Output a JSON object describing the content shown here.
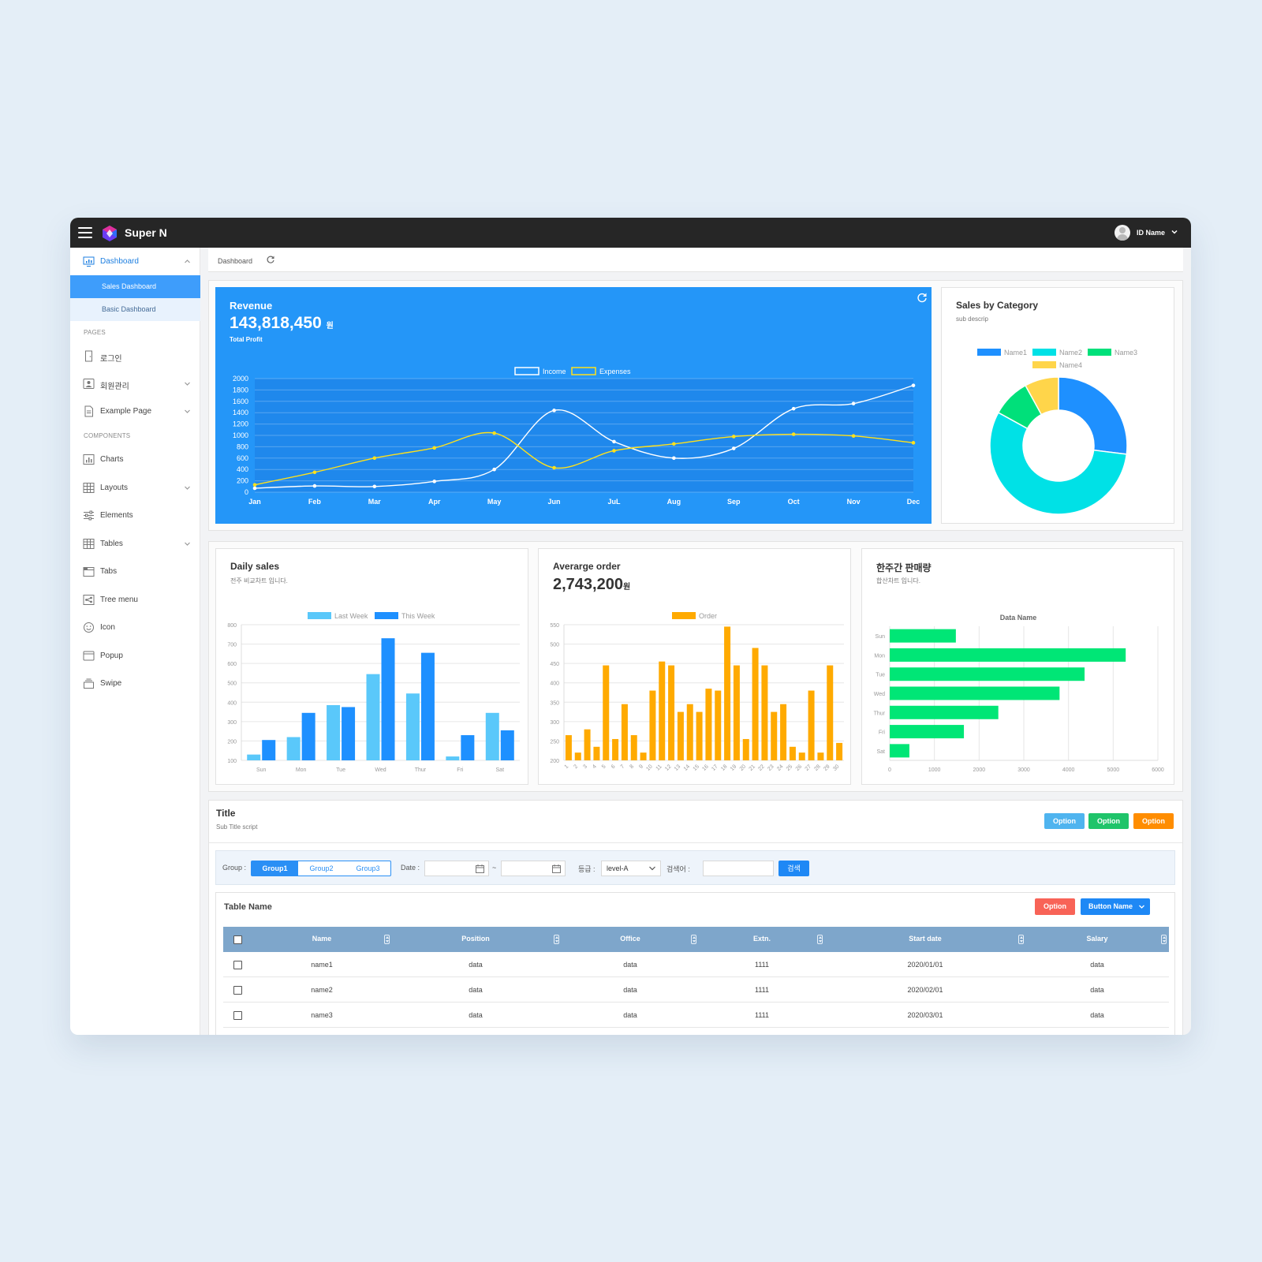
{
  "app": {
    "title": "Super N",
    "user_name": "ID Name"
  },
  "colors": {
    "topbar": "#262626",
    "accent": "#2496f8",
    "income_line": "#ffffff",
    "expenses_line": "#ffe11a",
    "last_week": "#5ac8fa",
    "this_week": "#1e90ff",
    "order": "#ffaa00",
    "weekly_bar": "#00e676"
  },
  "sidebar": {
    "dashboard": "Dashboard",
    "sub_items": [
      "Sales Dashboard",
      "Basic Dashboard"
    ],
    "pages_header": "PAGES",
    "pages": [
      {
        "label": "로그인",
        "icon": "door-icon",
        "has_chevron": false
      },
      {
        "label": "회원관리",
        "icon": "user-card-icon",
        "has_chevron": true
      },
      {
        "label": "Example Page",
        "icon": "document-icon",
        "has_chevron": true
      }
    ],
    "components_header": "COMPONENTS",
    "components": [
      {
        "label": "Charts",
        "icon": "bar-chart-icon",
        "has_chevron": false
      },
      {
        "label": "Layouts",
        "icon": "grid-icon",
        "has_chevron": true
      },
      {
        "label": "Elements",
        "icon": "sliders-icon",
        "has_chevron": false
      },
      {
        "label": "Tables",
        "icon": "table-icon",
        "has_chevron": true
      },
      {
        "label": "Tabs",
        "icon": "tabs-icon",
        "has_chevron": false
      },
      {
        "label": "Tree menu",
        "icon": "tree-icon",
        "has_chevron": false
      },
      {
        "label": "Icon",
        "icon": "smile-icon",
        "has_chevron": false
      },
      {
        "label": "Popup",
        "icon": "window-icon",
        "has_chevron": false
      },
      {
        "label": "Swipe",
        "icon": "stack-icon",
        "has_chevron": false
      }
    ]
  },
  "breadcrumb": {
    "text": "Dashboard"
  },
  "revenue": {
    "title": "Revenue",
    "value": "143,818,450",
    "unit": "원",
    "subtitle": "Total Profit"
  },
  "category": {
    "title": "Sales by Category",
    "subtitle": "sub descrip"
  },
  "daily": {
    "title": "Daily sales",
    "subtitle": "전주 비교차트 입니다."
  },
  "avg": {
    "title": "Averarge order",
    "value": "2,743,200",
    "unit": "원"
  },
  "weekly": {
    "title": "한주간 판매량",
    "subtitle": "합산차트 입니다."
  },
  "chart_data": [
    {
      "id": "revenue",
      "type": "line",
      "categories": [
        "Jan",
        "Feb",
        "Mar",
        "Apr",
        "May",
        "Jun",
        "JuL",
        "Aug",
        "Sep",
        "Oct",
        "Nov",
        "Dec"
      ],
      "series": [
        {
          "name": "Income",
          "values": [
            70,
            110,
            100,
            190,
            400,
            1440,
            890,
            600,
            770,
            1470,
            1560,
            1880
          ]
        },
        {
          "name": "Expenses",
          "values": [
            130,
            350,
            600,
            780,
            1040,
            430,
            730,
            850,
            980,
            1020,
            990,
            870
          ]
        }
      ],
      "ylim": [
        0,
        2000
      ],
      "yticks": [
        0,
        200,
        400,
        600,
        800,
        1000,
        1200,
        1400,
        1600,
        1800,
        2000
      ],
      "grid": true,
      "legend": "top"
    },
    {
      "id": "category",
      "type": "pie",
      "labels": [
        "Name1",
        "Name2",
        "Name3",
        "Name4"
      ],
      "values": [
        27,
        56,
        9,
        8
      ],
      "donut": true,
      "legend": "top"
    },
    {
      "id": "daily",
      "type": "bar",
      "categories": [
        "Sun",
        "Mon",
        "Tue",
        "Wed",
        "Thur",
        "Fri",
        "Sat"
      ],
      "series": [
        {
          "name": "Last Week",
          "values": [
            130,
            220,
            385,
            545,
            445,
            120,
            345
          ]
        },
        {
          "name": "This Week",
          "values": [
            205,
            345,
            375,
            730,
            655,
            230,
            255
          ]
        }
      ],
      "ylim": [
        100,
        800
      ],
      "yticks": [
        100,
        200,
        300,
        400,
        500,
        600,
        700,
        800
      ],
      "grid": true,
      "legend": "top"
    },
    {
      "id": "avg",
      "type": "bar",
      "categories": [
        "1",
        "2",
        "3",
        "4",
        "5",
        "6",
        "7",
        "8",
        "9",
        "10",
        "11",
        "12",
        "13",
        "14",
        "15",
        "16",
        "17",
        "18",
        "19",
        "20",
        "21",
        "22",
        "23",
        "24",
        "25",
        "26",
        "27",
        "28",
        "29",
        "30"
      ],
      "series": [
        {
          "name": "Order",
          "values": [
            265,
            220,
            280,
            235,
            445,
            255,
            345,
            265,
            220,
            380,
            455,
            445,
            325,
            345,
            325,
            385,
            380,
            545,
            445,
            255,
            490,
            445,
            325,
            345,
            235,
            220,
            380,
            220,
            445,
            245
          ]
        }
      ],
      "ylim": [
        200,
        550
      ],
      "yticks": [
        200,
        250,
        300,
        350,
        400,
        450,
        500,
        550
      ],
      "grid": true,
      "legend": "top"
    },
    {
      "id": "weekly",
      "type": "bar",
      "orientation": "horizontal",
      "title": "Data Name",
      "categories": [
        "Sun",
        "Mon",
        "Tue",
        "Wed",
        "Thur",
        "Fri",
        "Sat"
      ],
      "series": [
        {
          "name": "",
          "values": [
            1480,
            5280,
            4360,
            3800,
            2430,
            1660,
            440
          ]
        }
      ],
      "xlim": [
        0,
        6000
      ],
      "xticks": [
        0,
        1000,
        2000,
        3000,
        4000,
        5000,
        6000
      ],
      "grid": true
    }
  ],
  "section": {
    "title": "Title",
    "subtitle": "Sub Title script",
    "options": [
      "Option",
      "Option",
      "Option"
    ]
  },
  "filter": {
    "group_label": "Group :",
    "groups": [
      "Group1",
      "Group2",
      "Group3"
    ],
    "date_label": "Date :",
    "tilde": "~",
    "grade_label": "등급 :",
    "grade_value": "level-A",
    "keyword_label": "검색어 :",
    "search_button": "검색"
  },
  "table": {
    "name": "Table Name",
    "option_button": "Option",
    "button_name": "Button Name",
    "columns": [
      "Name",
      "Position",
      "Office",
      "Extn.",
      "Start date",
      "Salary"
    ],
    "rows": [
      [
        "name1",
        "data",
        "data",
        "1111",
        "2020/01/01",
        "data"
      ],
      [
        "name2",
        "data",
        "data",
        "1111",
        "2020/02/01",
        "data"
      ],
      [
        "name3",
        "data",
        "data",
        "1111",
        "2020/03/01",
        "data"
      ]
    ]
  }
}
